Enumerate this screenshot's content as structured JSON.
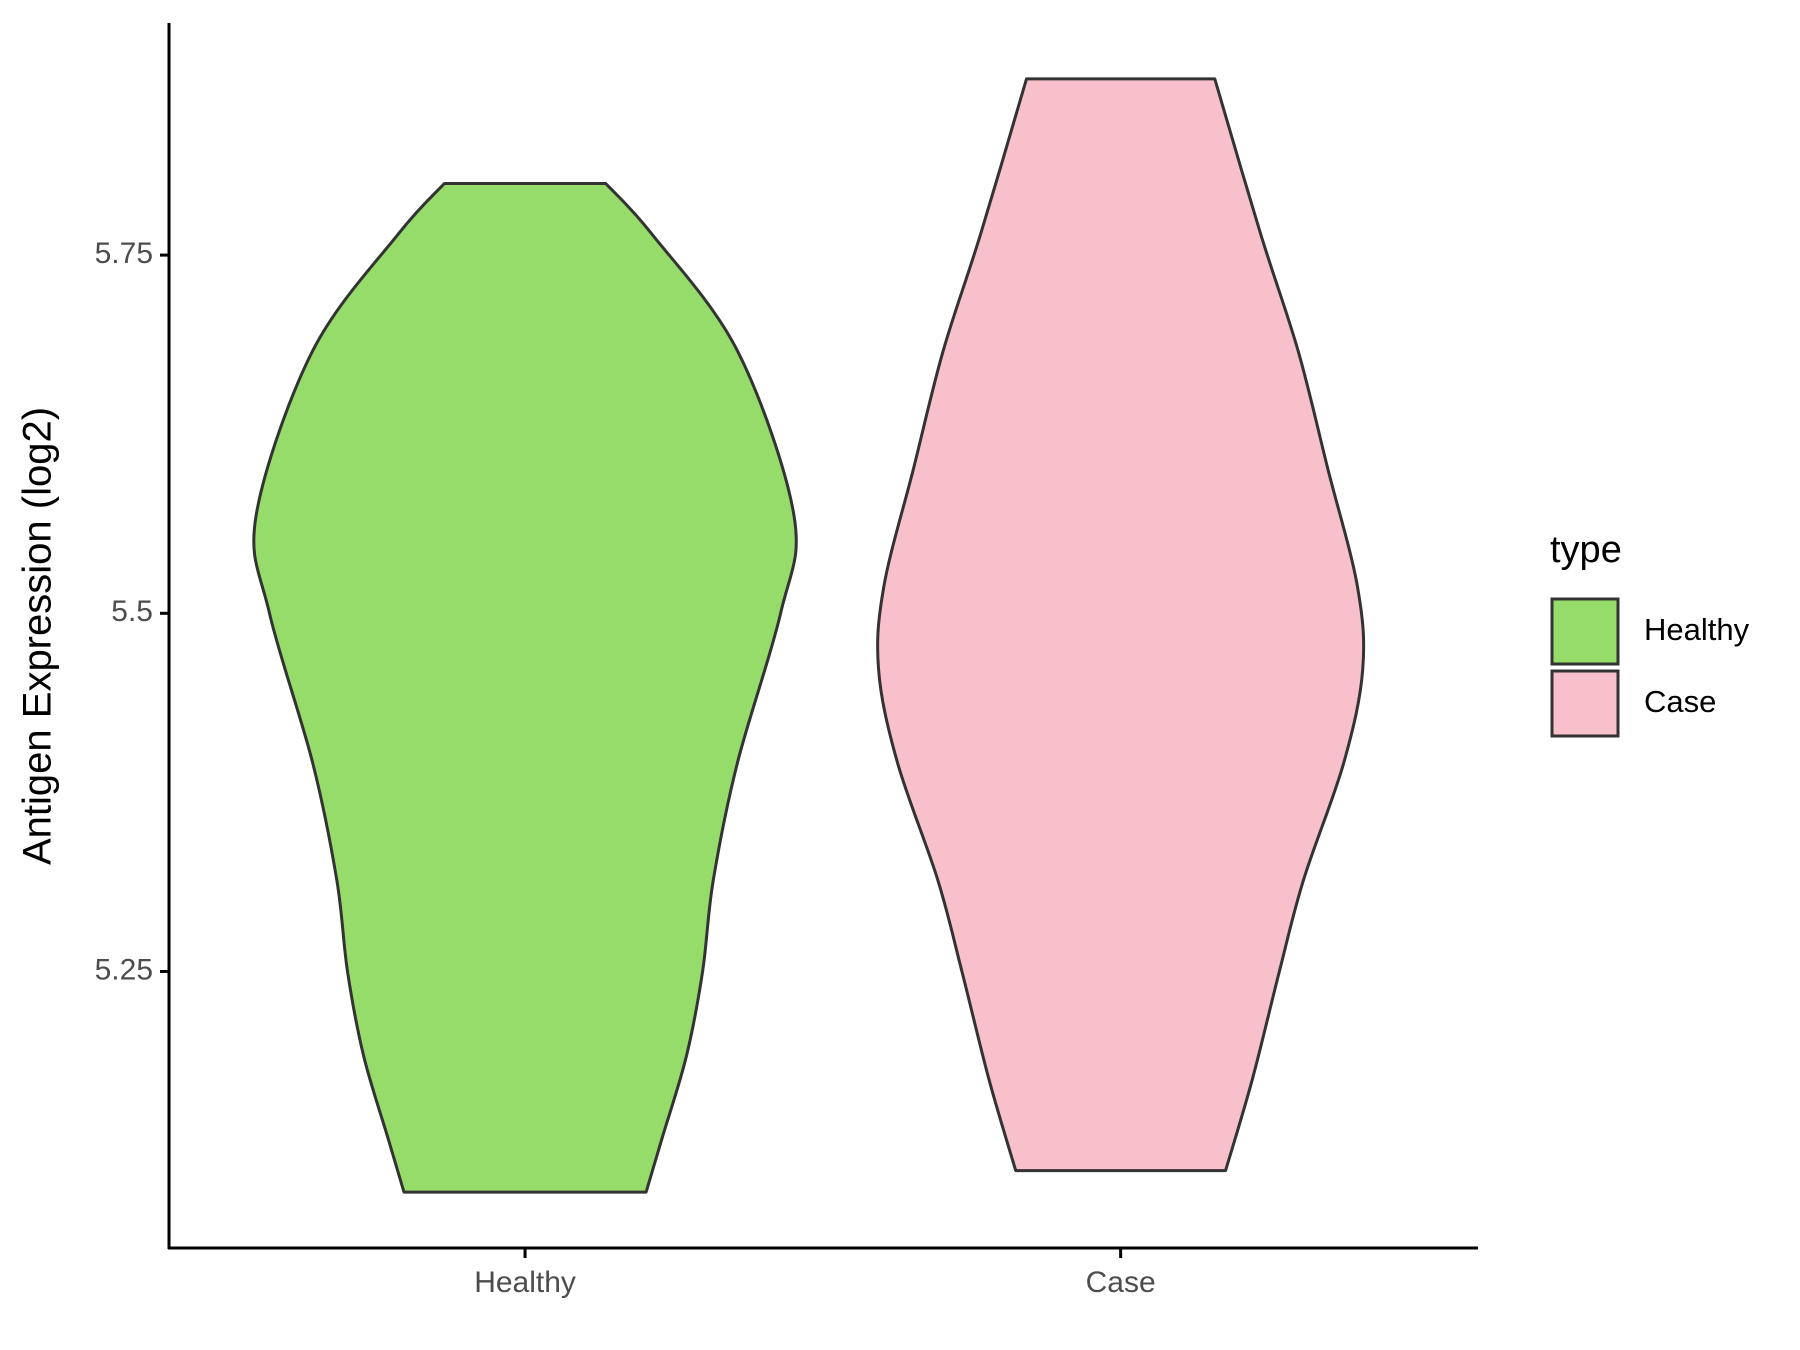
{
  "chart_data": {
    "type": "violin",
    "y_label": "Antigen Expression (log2)",
    "categories": [
      "Healthy",
      "Case"
    ],
    "legend_title": "type",
    "legend": "right",
    "ylim": [
      5.057,
      5.912
    ],
    "yticks": [
      5.25,
      5.5,
      {
        "value": 5.75,
        "label": "5.75"
      }
    ],
    "series": [
      {
        "name": "Healthy",
        "color": "#95dc6a",
        "y": [
          5.096,
          5.134,
          5.191,
          5.25,
          5.314,
          5.396,
          5.5,
          5.568,
          5.683,
          5.765,
          5.8
        ],
        "density": [
          0.45,
          0.51,
          0.6,
          0.66,
          0.7,
          0.79,
          0.95,
          1.0,
          0.79,
          0.47,
          0.3
        ]
      },
      {
        "name": "Case",
        "color": "#f7c0cb",
        "y": [
          5.111,
          5.175,
          5.25,
          5.314,
          5.396,
          5.461,
          5.519,
          5.601,
          5.683,
          5.765,
          5.873
        ],
        "density": [
          0.39,
          0.49,
          0.59,
          0.68,
          0.83,
          0.9,
          0.88,
          0.77,
          0.66,
          0.52,
          0.35
        ]
      }
    ]
  }
}
